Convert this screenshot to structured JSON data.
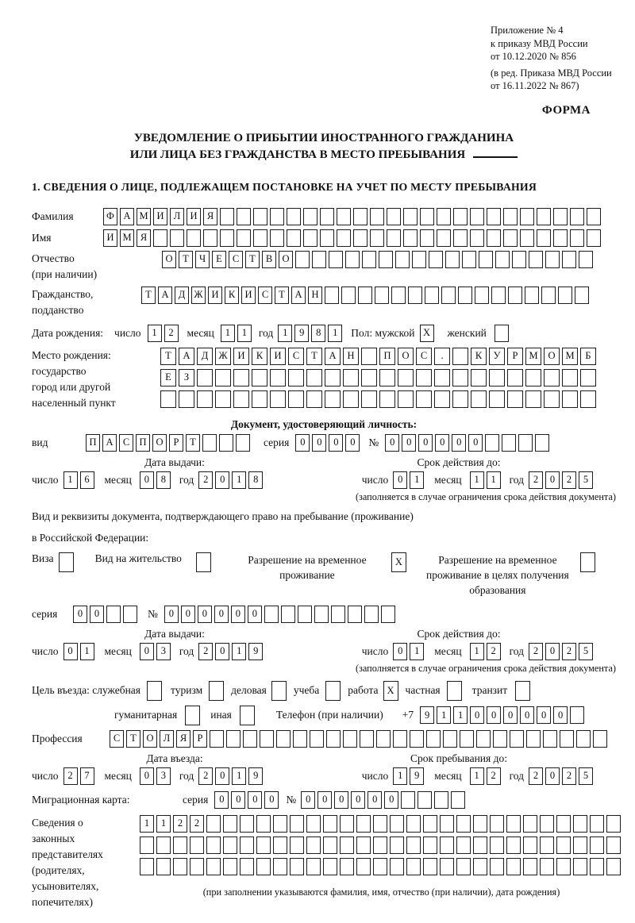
{
  "header": {
    "appendix_lines": {
      "l1": "Приложение № 4",
      "l2": "к приказу МВД России",
      "l3": "от 10.12.2020 № 856",
      "l4": "(в ред. Приказа МВД России",
      "l5": "от 16.11.2022 № 867)"
    },
    "form_label": "ФОРМА"
  },
  "title": {
    "line1": "УВЕДОМЛЕНИЕ О ПРИБЫТИИ ИНОСТРАННОГО ГРАЖДАНИНА",
    "line2": "ИЛИ ЛИЦА БЕЗ ГРАЖДАНСТВА В МЕСТО ПРЕБЫВАНИЯ"
  },
  "section1_heading": "1. СВЕДЕНИЯ О ЛИЦЕ, ПОДЛЕЖАЩЕМ ПОСТАНОВКЕ НА УЧЕТ ПО МЕСТУ ПРЕБЫВАНИЯ",
  "labels": {
    "surname": "Фамилия",
    "name": "Имя",
    "patronymic_1": "Отчество",
    "patronymic_2": "(при наличии)",
    "citizenship_1": "Гражданство,",
    "citizenship_2": "подданство",
    "birth_date": "Дата рождения:",
    "day": "число",
    "month": "месяц",
    "year": "год",
    "sex_male": "Пол: мужской",
    "sex_female": "женский",
    "birthplace_1": "Место рождения:",
    "birthplace_2": "государство",
    "birthplace_3": "город или другой",
    "birthplace_4": "населенный пункт",
    "doc_heading": "Документ, удостоверяющий личность:",
    "doc_type": "вид",
    "series": "серия",
    "number": "№",
    "issue_date": "Дата выдачи:",
    "valid_until": "Срок действия до:",
    "restriction_note": "(заполняется в случае ограничения срока действия документа)",
    "right_doc_1": "Вид и реквизиты документа, подтверждающего право на пребывание (проживание)",
    "right_doc_2": "в Российской Федерации:",
    "visa": "Виза",
    "residence_permit": "Вид на жительство",
    "temp_residence": "Разрешение на временное проживание",
    "temp_residence_edu": "Разрешение на временное проживание в целях получения образования",
    "purpose": "Цель въезда: служебная",
    "tourism": "туризм",
    "business": "деловая",
    "study": "учеба",
    "work": "работа",
    "private": "частная",
    "transit": "транзит",
    "humanitarian": "гуманитарная",
    "other": "иная",
    "phone": "Телефон (при наличии)",
    "phone_prefix": "+7",
    "profession": "Профессия",
    "entry_date": "Дата въезда:",
    "stay_until": "Срок пребывания до:",
    "migration_card": "Миграционная карта:",
    "representatives_1": "Сведения о",
    "representatives_2": "законных",
    "representatives_3": "представителях",
    "representatives_4": "(родителях,",
    "representatives_5": "усыновителях,",
    "representatives_6": "попечителях)",
    "representatives_note": "(при заполнении указываются фамилия, имя, отчество (при наличии), дата рождения)"
  },
  "fields": {
    "surname": {
      "value": "ФАМИЛИЯ",
      "length": 30
    },
    "name": {
      "value": "ИМЯ",
      "length": 30
    },
    "patronymic": {
      "value": "ОТЧЕСТВО",
      "length": 26
    },
    "citizenship": {
      "value": "ТАДЖИКИСТАН",
      "length": 27
    },
    "birth_day": {
      "value": "12",
      "length": 2
    },
    "birth_month": {
      "value": "11",
      "length": 2
    },
    "birth_year": {
      "value": "1981",
      "length": 4
    },
    "sex_male_box": {
      "value": "X",
      "length": 1
    },
    "sex_female_box": {
      "value": "",
      "length": 1
    },
    "birthplace_row1": {
      "value": "ТАДЖИКИСТАН ПОС. КУРМОМБ",
      "length": 24
    },
    "birthplace_row2": {
      "value": "ЕЗ",
      "length": 24
    },
    "birthplace_row3": {
      "value": "",
      "length": 24
    },
    "doc_type": {
      "value": "ПАСПОРТ",
      "length": 10
    },
    "doc_series": {
      "value": "0000",
      "length": 4
    },
    "doc_number": {
      "value": "000000",
      "length": 10
    },
    "doc_issue_day": {
      "value": "16",
      "length": 2
    },
    "doc_issue_month": {
      "value": "08",
      "length": 2
    },
    "doc_issue_year": {
      "value": "2018",
      "length": 4
    },
    "doc_valid_day": {
      "value": "01",
      "length": 2
    },
    "doc_valid_month": {
      "value": "11",
      "length": 2
    },
    "doc_valid_year": {
      "value": "2025",
      "length": 4
    },
    "visa_box": {
      "value": "",
      "length": 1
    },
    "residence_permit_box": {
      "value": "",
      "length": 1
    },
    "temp_residence_box": {
      "value": "X",
      "length": 1
    },
    "temp_residence_edu_box": {
      "value": "",
      "length": 1
    },
    "permit_series": {
      "value": "00",
      "length": 4
    },
    "permit_number": {
      "value": "000000",
      "length": 14
    },
    "permit_issue_day": {
      "value": "01",
      "length": 2
    },
    "permit_issue_month": {
      "value": "03",
      "length": 2
    },
    "permit_issue_year": {
      "value": "2019",
      "length": 4
    },
    "permit_valid_day": {
      "value": "01",
      "length": 2
    },
    "permit_valid_month": {
      "value": "12",
      "length": 2
    },
    "permit_valid_year": {
      "value": "2025",
      "length": 4
    },
    "purpose_official_box": {
      "value": "",
      "length": 1
    },
    "purpose_tourism_box": {
      "value": "",
      "length": 1
    },
    "purpose_business_box": {
      "value": "",
      "length": 1
    },
    "purpose_study_box": {
      "value": "",
      "length": 1
    },
    "purpose_work_box": {
      "value": "X",
      "length": 1
    },
    "purpose_private_box": {
      "value": "",
      "length": 1
    },
    "purpose_transit_box": {
      "value": "",
      "length": 1
    },
    "purpose_humanitarian_box": {
      "value": "",
      "length": 1
    },
    "purpose_other_box": {
      "value": "",
      "length": 1
    },
    "phone": {
      "value": "911000000",
      "length": 10
    },
    "profession": {
      "value": "СТОЛЯР",
      "length": 30
    },
    "entry_day": {
      "value": "27",
      "length": 2
    },
    "entry_month": {
      "value": "03",
      "length": 2
    },
    "entry_year": {
      "value": "2019",
      "length": 4
    },
    "stay_day": {
      "value": "19",
      "length": 2
    },
    "stay_month": {
      "value": "12",
      "length": 2
    },
    "stay_year": {
      "value": "2025",
      "length": 4
    },
    "migcard_series": {
      "value": "0000",
      "length": 4
    },
    "migcard_number": {
      "value": "000000",
      "length": 10
    },
    "rep_row1": {
      "value": "1122",
      "length": 29
    },
    "rep_row2": {
      "value": "",
      "length": 29
    },
    "rep_row3": {
      "value": "",
      "length": 29
    }
  }
}
